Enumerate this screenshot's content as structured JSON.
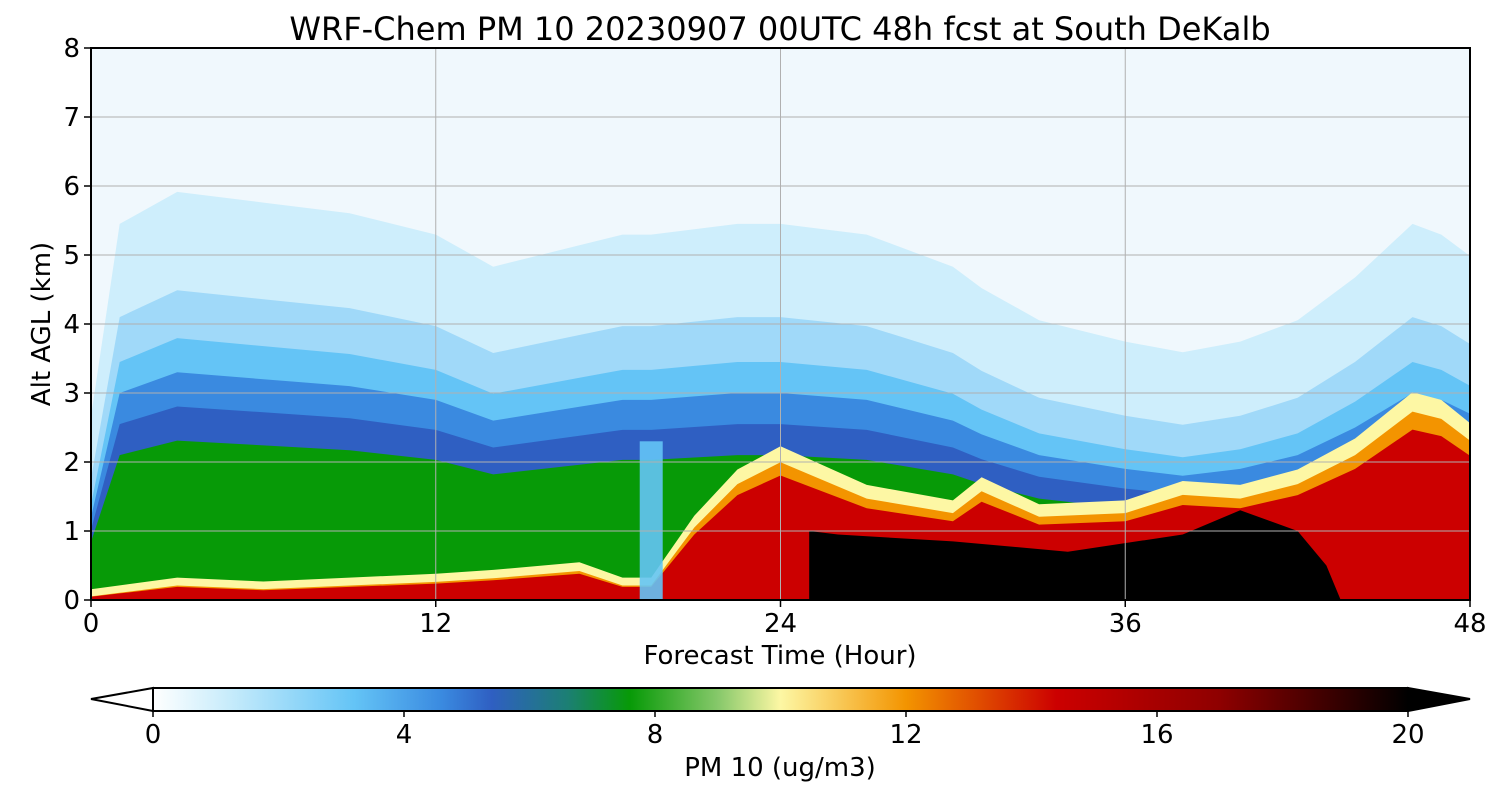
{
  "chart_data": {
    "type": "heatmap",
    "title": "WRF-Chem PM 10  20230907 00UTC 48h fcst at South DeKalb",
    "xlabel": "Forecast Time (Hour)",
    "ylabel": "Alt AGL (km)",
    "xlim": [
      0,
      48
    ],
    "ylim": [
      0,
      8
    ],
    "x_ticks": [
      "0",
      "12",
      "24",
      "36",
      "48"
    ],
    "y_ticks": [
      "0",
      "1",
      "2",
      "3",
      "4",
      "5",
      "6",
      "7",
      "8"
    ],
    "grid": true,
    "colorbar": {
      "label": "PM 10  (ug/m3)",
      "range": [
        0,
        20
      ],
      "ticks": [
        "0",
        "4",
        "8",
        "12",
        "16",
        "20"
      ],
      "extend": "both",
      "placement": "bottom",
      "colors": {
        "low": "#ffffff",
        "light_blue": "#c8ecfb",
        "sky_blue": "#64c4f6",
        "mid_blue": "#3a8ae0",
        "dark_blue": "#2f5fc2",
        "teal": "#1c7f74",
        "green": "#079a07",
        "light_green": "#86c86a",
        "pale_yellow": "#fdf7a4",
        "orange": "#f39400",
        "red": "#cc0000",
        "dark_red": "#8e0000",
        "black": "#000000"
      }
    },
    "series": [
      {
        "x": [
          0,
          1,
          3,
          6,
          9,
          12,
          14,
          17,
          18.5,
          19.5,
          21,
          22.5,
          24,
          27,
          30,
          31,
          33,
          36,
          38,
          40,
          42,
          44,
          46,
          47,
          48
        ],
        "pbl_top_km": [
          1.2,
          3.0,
          3.3,
          3.2,
          3.1,
          2.9,
          2.6,
          2.8,
          2.9,
          2.9,
          2.95,
          3.0,
          3.0,
          2.9,
          2.6,
          2.4,
          2.1,
          1.9,
          1.8,
          1.9,
          2.1,
          2.5,
          3.0,
          2.9,
          2.7
        ]
      },
      {
        "x": [
          0,
          1,
          3,
          6,
          9,
          12,
          14,
          17,
          18.5,
          19.5,
          21,
          22.5,
          24,
          27,
          30,
          31,
          33,
          36,
          38,
          40,
          42,
          44,
          46,
          47,
          48
        ],
        "elevated_top_km": [
          0.05,
          0.1,
          0.2,
          0.15,
          0.2,
          0.25,
          0.3,
          0.4,
          0.2,
          0.2,
          1.0,
          1.6,
          1.9,
          1.4,
          1.2,
          1.5,
          1.15,
          1.2,
          1.45,
          1.4,
          1.6,
          2.0,
          2.6,
          2.5,
          2.2
        ]
      }
    ],
    "features": {
      "clean_column_hour": 19.5,
      "peak_black_hours": [
        25,
        40
      ],
      "peak_black_top_km": 1.0
    }
  }
}
